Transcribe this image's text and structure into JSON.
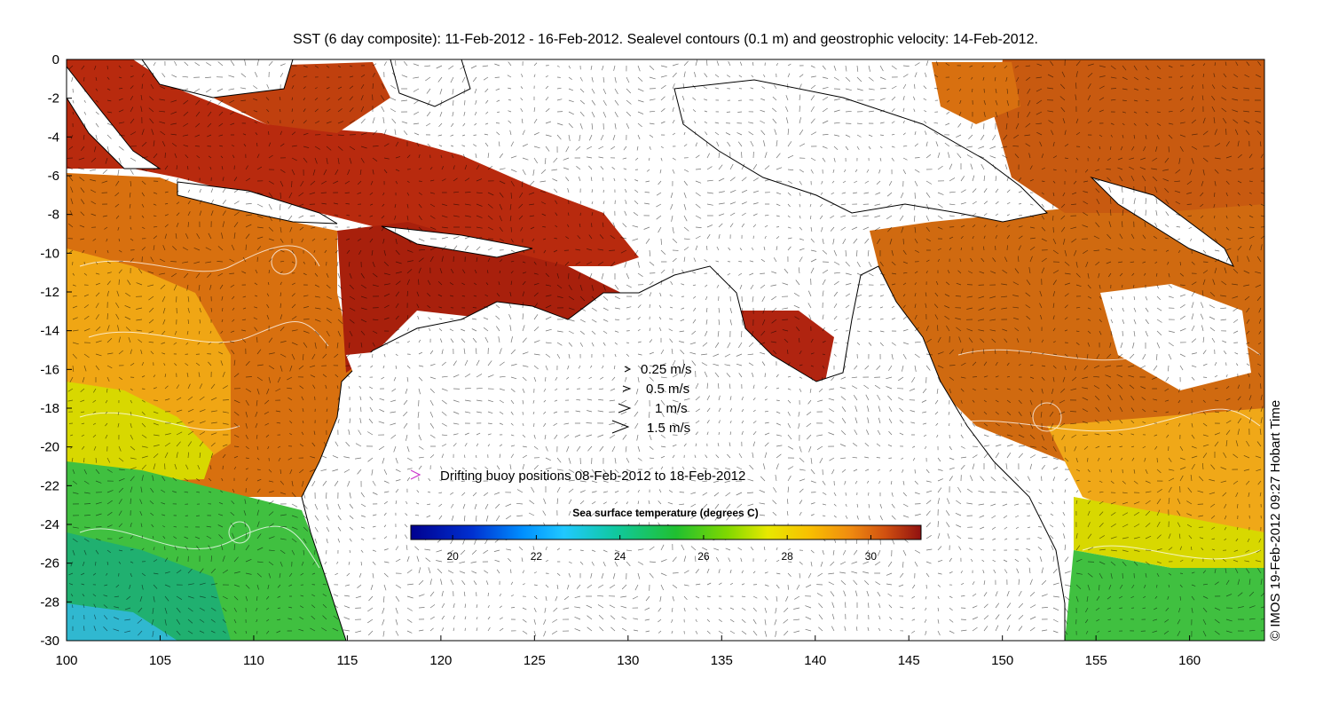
{
  "title": "SST (6 day composite): 11-Feb-2012 - 16-Feb-2012. Sealevel contours (0.1 m) and geostrophic velocity: 14-Feb-2012.",
  "credit": "© IMOS 19-Feb-2012 09:27 Hobart Time",
  "axes": {
    "x_ticks": [
      "100",
      "105",
      "110",
      "115",
      "120",
      "125",
      "130",
      "135",
      "140",
      "145",
      "150",
      "155",
      "160"
    ],
    "y_ticks": [
      "0",
      "-2",
      "-4",
      "-6",
      "-8",
      "-10",
      "-12",
      "-14",
      "-16",
      "-18",
      "-20",
      "-22",
      "-24",
      "-26",
      "-28",
      "-30"
    ],
    "xlim": [
      100,
      164
    ],
    "ylim": [
      -30,
      0
    ]
  },
  "velocity_legend": [
    {
      "label": "0.25 m/s",
      "speed": 0.25
    },
    {
      "label": "0.5 m/s",
      "speed": 0.5
    },
    {
      "label": "1 m/s",
      "speed": 1
    },
    {
      "label": "1.5 m/s",
      "speed": 1.5
    }
  ],
  "buoy_legend": {
    "label": "Drifting buoy positions 08-Feb-2012 to 18-Feb-2012",
    "marker_color": "#cc33cc"
  },
  "colorbar": {
    "title": "Sea surface temperature (degrees C)",
    "ticks": [
      "20",
      "22",
      "24",
      "26",
      "28",
      "30"
    ],
    "range": [
      19,
      31.2
    ]
  },
  "colors": {
    "warm": "#a51c0e",
    "orange": "#d8600f",
    "amber": "#f0a010",
    "yellow": "#e8e000",
    "green": "#30c040",
    "land": "#ffffff"
  }
}
